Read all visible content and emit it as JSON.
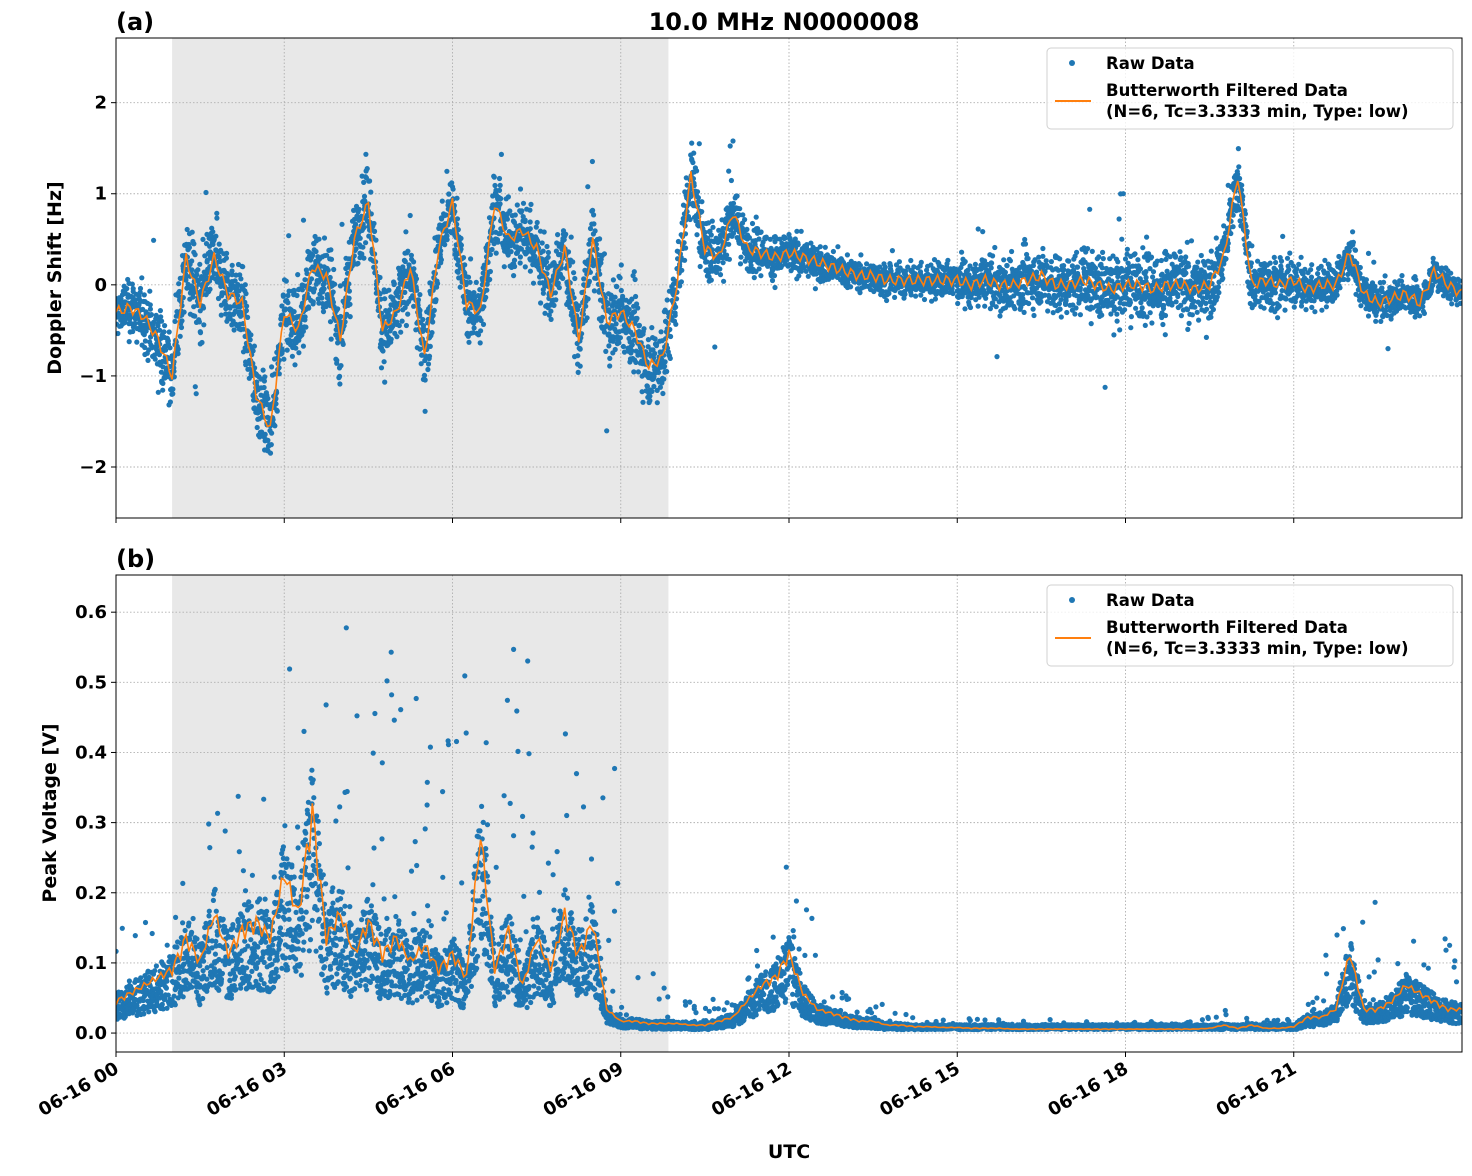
{
  "chart_data": [
    {
      "type": "scatter+line",
      "panel_label": "(a)",
      "title": "10.0 MHz N0000008",
      "xlabel": "",
      "ylabel": "Doppler Shift [Hz]",
      "xlim_hours_utc_2024_06_16": [
        0,
        24
      ],
      "ylim": [
        -2.56,
        2.71
      ],
      "yticks": [
        "−2",
        "−1",
        "0",
        "1",
        "2"
      ],
      "ytick_values": [
        -2,
        -1,
        0,
        1,
        2
      ],
      "grid": true,
      "legend_position": "top-right",
      "shaded_span_hours": [
        1.0,
        9.85
      ],
      "shaded_color": "#e8e8e8",
      "series": [
        {
          "name": "Raw Data",
          "kind": "scatter",
          "color": "#1f77b4",
          "description_of_values": "spread of raw points around filtered curve, hourly (Hz)",
          "spread_hourly": [
            0.35,
            0.5,
            0.5,
            0.5,
            0.5,
            0.5,
            0.45,
            0.45,
            0.45,
            0.5,
            0.5,
            0.35,
            0.25,
            0.2,
            0.2,
            0.25,
            0.35,
            0.4,
            0.45,
            0.45,
            0.4,
            0.3,
            0.25,
            0.2,
            0.2
          ]
        },
        {
          "name": "Butterworth Filtered Data\n(N=6, Tc=3.3333 min, Type: low)",
          "kind": "line",
          "color": "#ff7f0e",
          "x_step_hours": 0.25,
          "values": [
            -0.3,
            -0.25,
            -0.35,
            -0.6,
            -1.0,
            0.3,
            -0.2,
            0.3,
            -0.1,
            -0.2,
            -1.2,
            -1.6,
            -0.3,
            -0.5,
            0.2,
            0.1,
            -0.6,
            0.5,
            0.9,
            -0.5,
            -0.3,
            0.2,
            -0.8,
            0.4,
            0.9,
            -0.2,
            -0.3,
            0.9,
            0.5,
            0.6,
            0.4,
            -0.1,
            0.4,
            -0.6,
            0.5,
            -0.4,
            -0.3,
            -0.5,
            -0.9,
            -0.8,
            0.0,
            1.2,
            0.4,
            0.3,
            0.8,
            0.4,
            0.35,
            0.3,
            0.35,
            0.3,
            0.25,
            0.2,
            0.15,
            0.1,
            0.1,
            0.05,
            0.05,
            0.05,
            0.05,
            0.05,
            0.05,
            0.0,
            0.05,
            0.0,
            0.0,
            0.05,
            0.1,
            0.0,
            0.0,
            0.05,
            0.0,
            -0.05,
            0.0,
            0.0,
            -0.05,
            0.0,
            0.0,
            -0.05,
            0.0,
            0.3,
            1.2,
            0.0,
            0.05,
            0.0,
            0.05,
            -0.05,
            0.0,
            0.0,
            0.35,
            -0.1,
            -0.2,
            -0.15,
            -0.1,
            -0.2,
            0.15,
            0.0,
            -0.1
          ]
        }
      ],
      "legend": [
        "Raw Data",
        "Butterworth Filtered Data",
        "(N=6, Tc=3.3333 min, Type: low)"
      ]
    },
    {
      "type": "scatter+line",
      "panel_label": "(b)",
      "title": "",
      "xlabel": "UTC",
      "ylabel": "Peak Voltage [V]",
      "xlim_hours_utc_2024_06_16": [
        0,
        24
      ],
      "ylim": [
        -0.027,
        0.653
      ],
      "yticks": [
        "0.0",
        "0.1",
        "0.2",
        "0.3",
        "0.4",
        "0.5",
        "0.6"
      ],
      "ytick_values": [
        0,
        0.1,
        0.2,
        0.3,
        0.4,
        0.5,
        0.6
      ],
      "xticks": [
        "06-16 00",
        "06-16 03",
        "06-16 06",
        "06-16 09",
        "06-16 12",
        "06-16 15",
        "06-16 18",
        "06-16 21"
      ],
      "xtick_hours": [
        0,
        3,
        6,
        9,
        12,
        15,
        18,
        21
      ],
      "grid": true,
      "legend_position": "top-right",
      "shaded_span_hours": [
        1.0,
        9.85
      ],
      "series": [
        {
          "name": "Raw Data",
          "kind": "scatter",
          "color": "#1f77b4",
          "raw_max_hourly": [
            0.14,
            0.2,
            0.3,
            0.35,
            0.6,
            0.5,
            0.45,
            0.6,
            0.33,
            0.4,
            0.04,
            0.04,
            0.2,
            0.06,
            0.03,
            0.02,
            0.015,
            0.012,
            0.012,
            0.012,
            0.03,
            0.012,
            0.17,
            0.19,
            0.09
          ],
          "raw_min": 0.005
        },
        {
          "name": "Butterworth Filtered Data\n(N=6, Tc=3.3333 min, Type: low)",
          "kind": "line",
          "color": "#ff7f0e",
          "x_step_hours": 0.25,
          "values": [
            0.04,
            0.05,
            0.06,
            0.07,
            0.08,
            0.12,
            0.09,
            0.15,
            0.1,
            0.13,
            0.14,
            0.12,
            0.2,
            0.15,
            0.28,
            0.12,
            0.15,
            0.1,
            0.14,
            0.1,
            0.12,
            0.09,
            0.11,
            0.08,
            0.1,
            0.07,
            0.25,
            0.08,
            0.13,
            0.06,
            0.12,
            0.08,
            0.15,
            0.1,
            0.14,
            0.03,
            0.015,
            0.015,
            0.012,
            0.012,
            0.012,
            0.01,
            0.01,
            0.015,
            0.02,
            0.04,
            0.06,
            0.07,
            0.1,
            0.05,
            0.03,
            0.025,
            0.02,
            0.015,
            0.015,
            0.01,
            0.01,
            0.008,
            0.008,
            0.007,
            0.007,
            0.006,
            0.006,
            0.006,
            0.005,
            0.005,
            0.005,
            0.005,
            0.005,
            0.005,
            0.005,
            0.005,
            0.005,
            0.005,
            0.005,
            0.005,
            0.005,
            0.005,
            0.006,
            0.01,
            0.006,
            0.01,
            0.006,
            0.006,
            0.008,
            0.02,
            0.02,
            0.03,
            0.1,
            0.03,
            0.03,
            0.04,
            0.06,
            0.05,
            0.04,
            0.03,
            0.03
          ]
        }
      ],
      "legend": [
        "Raw Data",
        "Butterworth Filtered Data",
        "(N=6, Tc=3.3333 min, Type: low)"
      ]
    }
  ]
}
